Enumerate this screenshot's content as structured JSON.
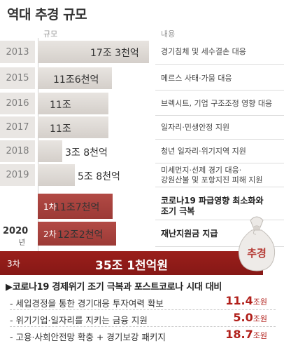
{
  "title": "역대 추경 규모",
  "headers": {
    "scale": "규모",
    "content": "내용"
  },
  "chart_data": {
    "type": "bar",
    "orientation": "horizontal",
    "unit_note": "조원",
    "categories": [
      "2013",
      "2015",
      "2016",
      "2017",
      "2018",
      "2019",
      "1차",
      "2차",
      "3차"
    ],
    "values": [
      17.3,
      11.6,
      11.0,
      11.0,
      3.8,
      5.8,
      11.7,
      12.2,
      35.1
    ],
    "value_labels": [
      "17조 3천억",
      "11조6천억",
      "11조",
      "11조",
      "3조 8천억",
      "5조 8천억",
      "11조7천억",
      "12조2천억",
      "35조 1천억원"
    ],
    "descriptions": [
      "경기침체 및 세수결손 대응",
      "메르스 사태·가뭄 대응",
      "브렉시트, 기업 구조조정 영향 대응",
      "일자리·민생안정 지원",
      "청년 일자리·위기지역 지원",
      "미세먼지·선제 경기 대응·\n강원산불 및 포항지진 피해 지원",
      "코로나19 파급영향 최소화와\n조기 극복",
      "재난지원금 지급",
      ""
    ],
    "group_label": {
      "year": "2020",
      "suffix": "년"
    },
    "xlim": [
      0,
      36
    ],
    "colors": {
      "past": "#dcd7d2",
      "year2020": "#a8423e",
      "third": "#921c19"
    }
  },
  "bag_label": "추경",
  "note": {
    "heading": "▶코로나19 경제위기 조기 극복과 포스트코로나 시대 대비",
    "items": [
      {
        "label": "- 세입경정을 통한 경기대응 투자여력 확보",
        "value": "11.4",
        "unit": "조원"
      },
      {
        "label": "- 위기기업·일자리를 지키는 금융 지원",
        "value": "5.0",
        "unit": "조원"
      },
      {
        "label": "- 고용·사회안전망 확충 + 경기보강 패키지",
        "value": "18.7",
        "unit": "조원"
      }
    ]
  }
}
